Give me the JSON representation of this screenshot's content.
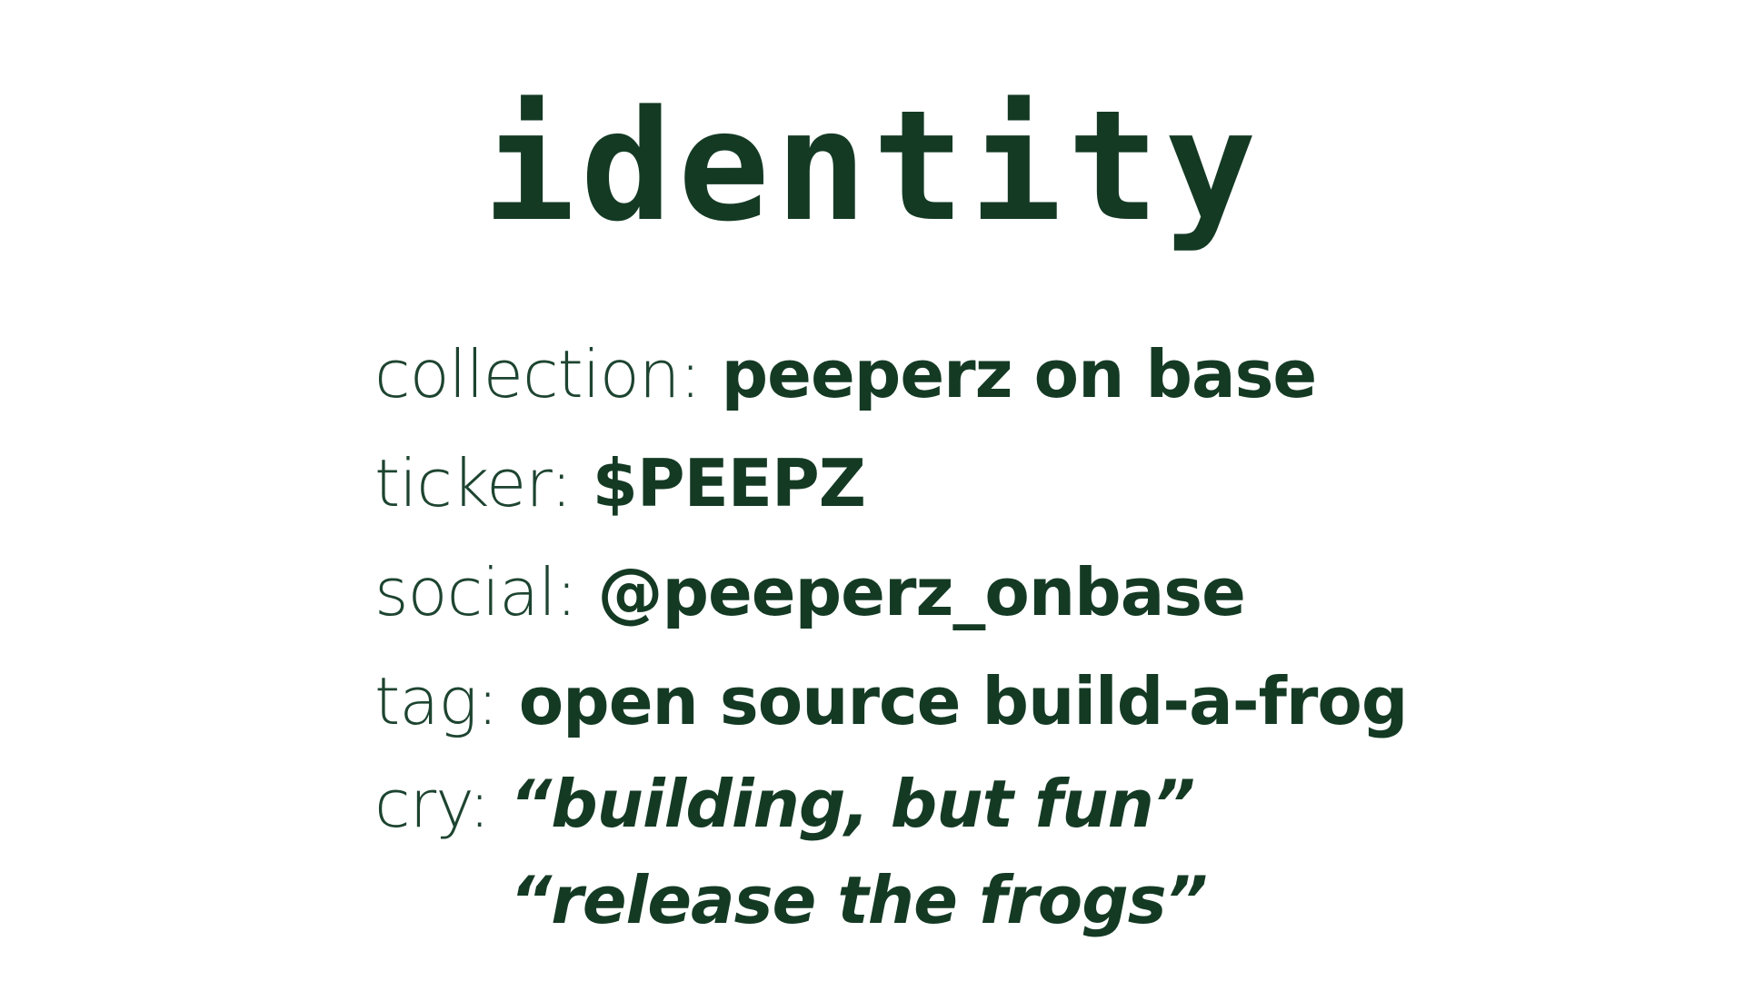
{
  "title": "identity",
  "colors": {
    "text": "#143a24",
    "background": "#ffffff"
  },
  "fields": {
    "collection": {
      "label": "collection:",
      "value": "peeperz on base"
    },
    "ticker": {
      "label": "ticker:",
      "value": "$PEEPZ"
    },
    "social": {
      "label": "social:",
      "value": "@peeperz_onbase"
    },
    "tag": {
      "label": "tag:",
      "value": "open source build-a-frog"
    },
    "cry": {
      "label": "cry:",
      "values": [
        "“building, but fun”",
        "“release the frogs”"
      ]
    }
  }
}
